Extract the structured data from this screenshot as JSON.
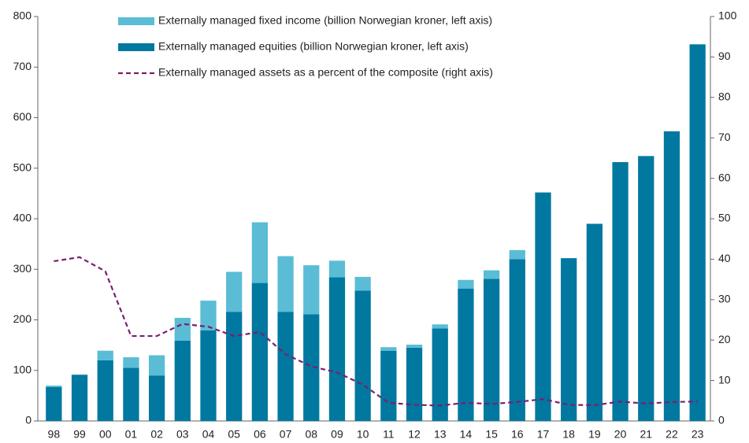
{
  "chart_data": {
    "type": "bar",
    "stacked": true,
    "categories": [
      "98",
      "99",
      "00",
      "01",
      "02",
      "03",
      "04",
      "05",
      "06",
      "07",
      "08",
      "09",
      "10",
      "11",
      "12",
      "13",
      "14",
      "15",
      "16",
      "17",
      "18",
      "19",
      "20",
      "21",
      "22",
      "23"
    ],
    "series": [
      {
        "name": "Externally managed fixed income (billion Norwegian kroner, left axis)",
        "color": "#5bbcd6",
        "kind": "bar",
        "values": [
          3,
          1,
          19,
          21,
          40,
          45,
          59,
          79,
          120,
          110,
          97,
          33,
          27,
          7,
          6,
          8,
          17,
          17,
          18,
          0,
          0,
          0,
          0,
          0,
          0,
          0
        ]
      },
      {
        "name": "Externally managed equities (billion Norwegian kroner, left axis)",
        "color": "#00789f",
        "kind": "bar",
        "values": [
          67,
          91,
          120,
          105,
          90,
          159,
          179,
          216,
          273,
          216,
          211,
          284,
          258,
          139,
          145,
          183,
          262,
          281,
          320,
          452,
          322,
          390,
          512,
          524,
          573,
          745
        ]
      },
      {
        "name": "Externally managed assets as a percent of the composite (right axis)",
        "color": "#7b1f6e",
        "kind": "line",
        "axis": "y2",
        "dashed": true,
        "values": [
          39.5,
          40.5,
          37,
          21,
          21,
          24,
          23.3,
          21,
          22,
          16.5,
          13.5,
          12,
          9,
          4.5,
          4,
          3.8,
          4.5,
          4.2,
          4.7,
          5.4,
          4,
          3.9,
          4.8,
          4.3,
          4.7,
          4.8
        ]
      }
    ],
    "ylim": [
      0,
      800
    ],
    "yticks": [
      0,
      100,
      200,
      300,
      400,
      500,
      600,
      700,
      800
    ],
    "y2lim": [
      0,
      100
    ],
    "y2ticks": [
      0,
      10,
      20,
      30,
      40,
      50,
      60,
      70,
      80,
      90,
      100
    ]
  }
}
